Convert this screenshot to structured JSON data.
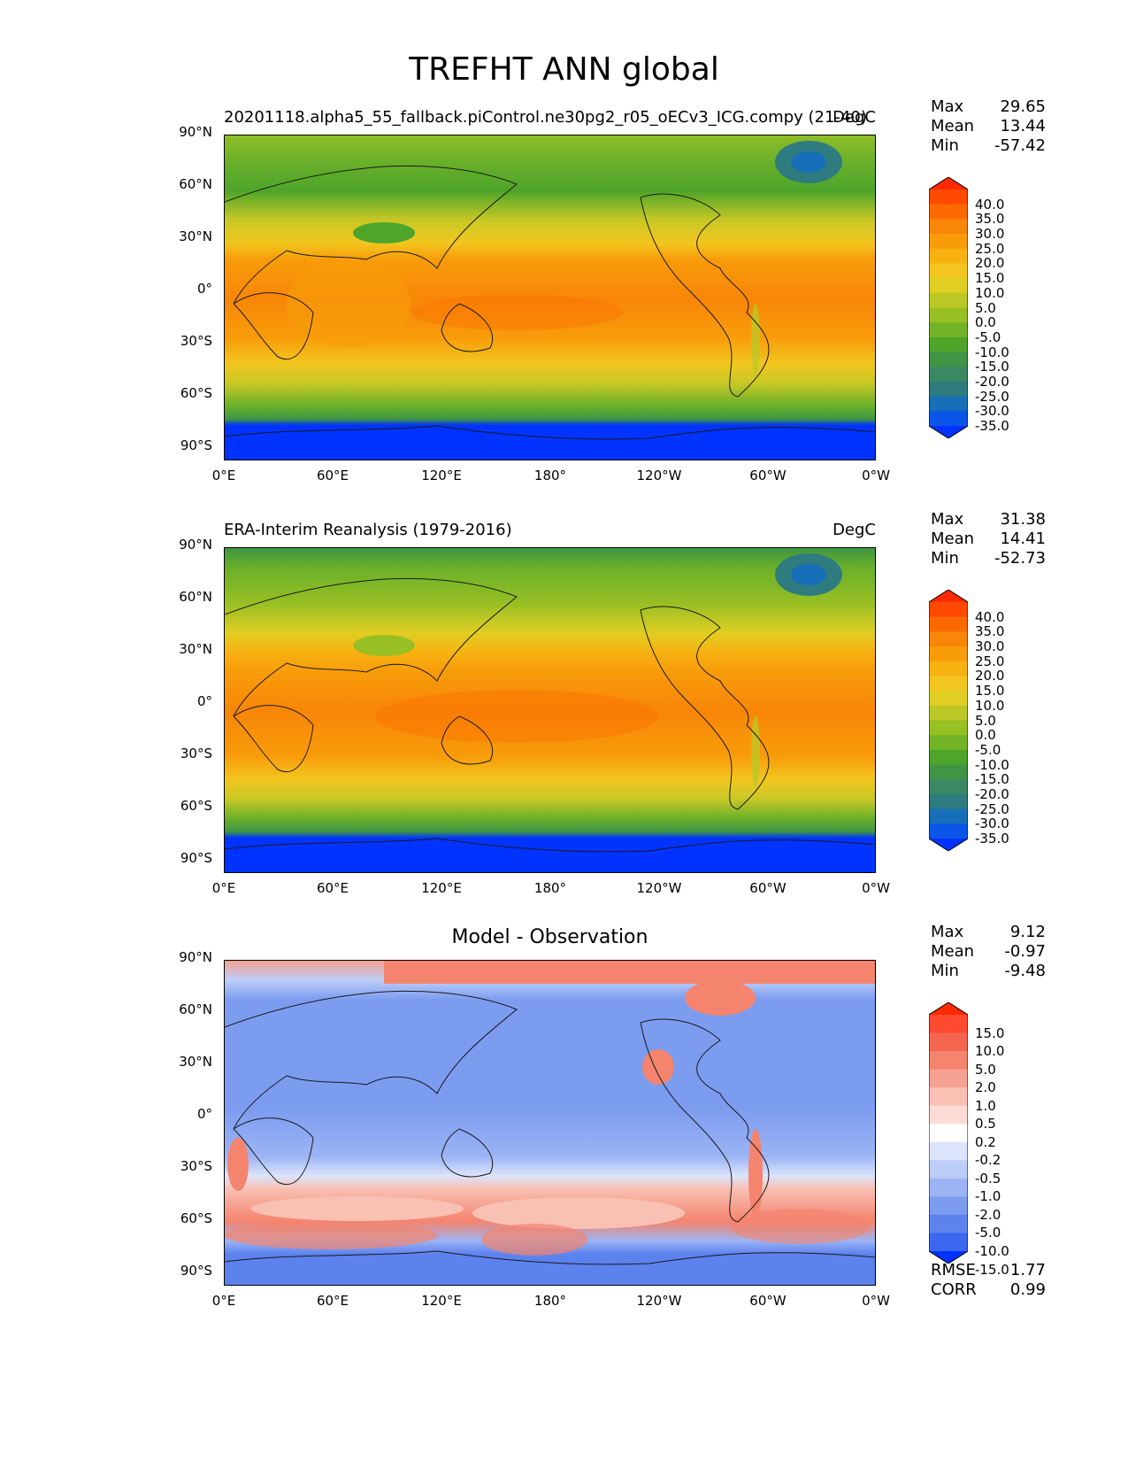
{
  "title": "TREFHT ANN global",
  "axes": {
    "lat_labels": [
      "90°N",
      "60°N",
      "30°N",
      "0°",
      "30°S",
      "60°S",
      "90°S"
    ],
    "lon_labels": [
      "0°E",
      "60°E",
      "120°E",
      "180°",
      "120°W",
      "60°W",
      "0°W"
    ]
  },
  "panels": [
    {
      "left_title": "20201118.alpha5_55_fallback.piControl.ne30pg2_r05_oECv3_ICG.compy (21-40)",
      "right_title": "DegC",
      "center_title": "",
      "stats": [
        {
          "label": "Max",
          "value": "29.65"
        },
        {
          "label": "Mean",
          "value": "13.44"
        },
        {
          "label": "Min",
          "value": "-57.42"
        }
      ],
      "colorbar": {
        "labels": [
          "40.0",
          "35.0",
          "30.0",
          "25.0",
          "20.0",
          "15.0",
          "10.0",
          "5.0",
          "0.0",
          "-5.0",
          "-10.0",
          "-15.0",
          "-20.0",
          "-25.0",
          "-30.0",
          "-35.0"
        ],
        "colors": [
          "#ff2a00",
          "#ff4a00",
          "#fb6a00",
          "#f88608",
          "#f89c0a",
          "#f7b212",
          "#f2c61f",
          "#e0ce23",
          "#bcc825",
          "#98bf24",
          "#72b426",
          "#4ea52a",
          "#3f9544",
          "#3a8864",
          "#2e7b80",
          "#166fb8",
          "#0a55e8",
          "#0033ff"
        ]
      }
    },
    {
      "left_title": "ERA-Interim Reanalysis (1979-2016)",
      "right_title": "DegC",
      "center_title": "",
      "stats": [
        {
          "label": "Max",
          "value": "31.38"
        },
        {
          "label": "Mean",
          "value": "14.41"
        },
        {
          "label": "Min",
          "value": "-52.73"
        }
      ],
      "colorbar": {
        "labels": [
          "40.0",
          "35.0",
          "30.0",
          "25.0",
          "20.0",
          "15.0",
          "10.0",
          "5.0",
          "0.0",
          "-5.0",
          "-10.0",
          "-15.0",
          "-20.0",
          "-25.0",
          "-30.0",
          "-35.0"
        ],
        "colors": [
          "#ff2a00",
          "#ff4a00",
          "#fb6a00",
          "#f88608",
          "#f89c0a",
          "#f7b212",
          "#f2c61f",
          "#e0ce23",
          "#bcc825",
          "#98bf24",
          "#72b426",
          "#4ea52a",
          "#3f9544",
          "#3a8864",
          "#2e7b80",
          "#166fb8",
          "#0a55e8",
          "#0033ff"
        ]
      }
    },
    {
      "left_title": "",
      "right_title": "",
      "center_title": "Model - Observation",
      "stats": [
        {
          "label": "Max",
          "value": "9.12"
        },
        {
          "label": "Mean",
          "value": "-0.97"
        },
        {
          "label": "Min",
          "value": "-9.48"
        }
      ],
      "colorbar": {
        "labels": [
          "15.0",
          "10.0",
          "5.0",
          "2.0",
          "1.0",
          "0.5",
          "0.2",
          "-0.2",
          "-0.5",
          "-1.0",
          "-2.0",
          "-5.0",
          "-10.0",
          "-15.0"
        ],
        "colors": [
          "#ff2a00",
          "#ff4a30",
          "#f56650",
          "#f4846e",
          "#f6a292",
          "#f9c0b4",
          "#fcdcd4",
          "#ffffff",
          "#dce4fc",
          "#bccdf8",
          "#9cb4f4",
          "#7c9cf0",
          "#5c82ee",
          "#3c68f0",
          "#0033ff"
        ]
      }
    }
  ],
  "bottom_stats": [
    {
      "label": "RMSE",
      "value": "1.77"
    },
    {
      "label": "CORR",
      "value": "0.99"
    }
  ]
}
